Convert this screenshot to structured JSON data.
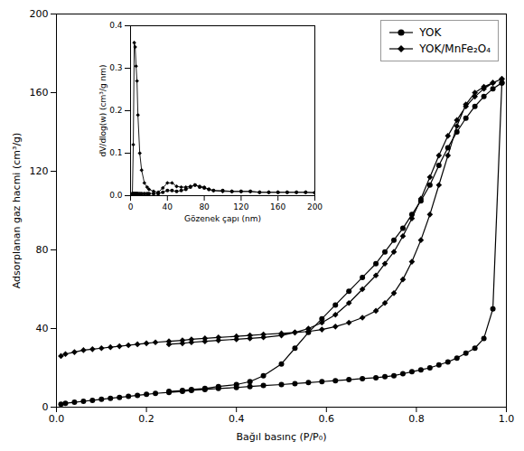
{
  "chart_data": [
    {
      "type": "line",
      "xlabel": "Bağıl basınç (P/P₀)",
      "ylabel": "Adsorplanan gaz hacmi (cm³/g)",
      "x": [
        0.01,
        0.02,
        0.04,
        0.06,
        0.08,
        0.1,
        0.12,
        0.14,
        0.16,
        0.18,
        0.2,
        0.22,
        0.25,
        0.28,
        0.3,
        0.33,
        0.36,
        0.4,
        0.43,
        0.46,
        0.5,
        0.53,
        0.56,
        0.59,
        0.62,
        0.65,
        0.68,
        0.71,
        0.73,
        0.75,
        0.77,
        0.79,
        0.81,
        0.83,
        0.85,
        0.87,
        0.89,
        0.91,
        0.93,
        0.95,
        0.97,
        0.99,
        null,
        0.99,
        0.97,
        0.95,
        0.93,
        0.91,
        0.89,
        0.87,
        0.85,
        0.83,
        0.81,
        0.79,
        0.77,
        0.75,
        0.73,
        0.71,
        0.68,
        0.65,
        0.62,
        0.59,
        0.56,
        0.53,
        0.5,
        0.46,
        0.43,
        0.4,
        0.36,
        0.33,
        0.3,
        0.28,
        0.25
      ],
      "series": [
        {
          "name": "YOK",
          "color": "#000000",
          "marker": "circle",
          "values": [
            1.5,
            2.0,
            2.5,
            3.0,
            3.5,
            4.0,
            4.5,
            5.0,
            5.5,
            6.0,
            6.5,
            7.0,
            7.5,
            8.0,
            8.5,
            9.0,
            9.5,
            10.0,
            10.5,
            11.0,
            11.5,
            12.0,
            12.5,
            13.0,
            13.5,
            14.0,
            14.5,
            15.0,
            15.5,
            16.0,
            17.0,
            18.0,
            19.0,
            20.0,
            21.5,
            23.0,
            25.0,
            27.5,
            30.0,
            35.0,
            50.0,
            165.0,
            null,
            165.0,
            162.0,
            158.0,
            153.0,
            147.0,
            140.0,
            132.0,
            123.0,
            113.0,
            105.0,
            98.0,
            91.0,
            85.0,
            79.0,
            73.0,
            66.0,
            59.0,
            52.0,
            45.0,
            38.0,
            30.0,
            22.0,
            16.0,
            13.0,
            11.5,
            10.5,
            9.5,
            9.0,
            8.5,
            8.0
          ]
        },
        {
          "name": "YOK/MnFe₂O₄",
          "color": "#000000",
          "marker": "diamond",
          "values": [
            26.0,
            27.0,
            28.0,
            29.0,
            29.5,
            30.0,
            30.5,
            31.0,
            31.5,
            32.0,
            32.5,
            33.0,
            33.5,
            34.0,
            34.5,
            35.0,
            35.5,
            36.0,
            36.5,
            37.0,
            37.5,
            38.0,
            38.5,
            39.5,
            41.0,
            43.0,
            45.5,
            49.0,
            53.0,
            58.0,
            65.0,
            74.0,
            85.0,
            98.0,
            113.0,
            128.0,
            143.0,
            154.0,
            160.0,
            163.0,
            165.0,
            167.0,
            null,
            167.0,
            165.0,
            162.0,
            158.0,
            153.0,
            146.0,
            138.0,
            128.0,
            117.0,
            106.0,
            96.0,
            87.0,
            79.0,
            73.0,
            67.0,
            60.0,
            53.0,
            47.0,
            43.0,
            40.0,
            38.0,
            36.5,
            35.5,
            35.0,
            34.5,
            34.0,
            33.5,
            33.0,
            32.5,
            32.0
          ]
        }
      ],
      "xlim": [
        0,
        1.0
      ],
      "ylim": [
        0,
        200
      ],
      "xticks": [
        {
          "value": 0,
          "label": "0.0"
        },
        0.2,
        0.4,
        0.6,
        0.8,
        {
          "value": 1.0,
          "label": "1.0"
        }
      ],
      "yticks": [
        0,
        40,
        80,
        120,
        160,
        200
      ],
      "grid": false,
      "legend": "upper right"
    },
    {
      "type": "line",
      "xlabel": "Gözenek çapı (nm)",
      "ylabel": "dV/dlog(w) (cm³/g nm)",
      "x": [
        2,
        3,
        4,
        5,
        6,
        7,
        8,
        10,
        12,
        15,
        18,
        20,
        25,
        30,
        35,
        40,
        45,
        50,
        55,
        60,
        65,
        70,
        75,
        80,
        85,
        90,
        100,
        110,
        120,
        130,
        140,
        150,
        160,
        170,
        180,
        190,
        200
      ],
      "series": [
        {
          "name": "YOK",
          "color": "#000000",
          "marker": "circle",
          "values": [
            0.005,
            0.005,
            0.005,
            0.005,
            0.005,
            0.005,
            0.005,
            0.005,
            0.005,
            0.005,
            0.005,
            0.005,
            0.005,
            0.005,
            0.008,
            0.012,
            0.012,
            0.01,
            0.012,
            0.015,
            0.02,
            0.025,
            0.02,
            0.018,
            0.015,
            0.012,
            0.012,
            0.01,
            0.01,
            0.01,
            0.008,
            0.008,
            0.008,
            0.008,
            0.008,
            0.008,
            0.007
          ]
        },
        {
          "name": "YOK/MnFe₂O₄",
          "color": "#000000",
          "marker": "diamond",
          "values": [
            0.005,
            0.12,
            0.36,
            0.35,
            0.305,
            0.27,
            0.19,
            0.1,
            0.06,
            0.03,
            0.02,
            0.015,
            0.01,
            0.008,
            0.018,
            0.03,
            0.03,
            0.022,
            0.02,
            0.02,
            0.022,
            0.025,
            0.022,
            0.02,
            0.015,
            0.012,
            0.01,
            0.01,
            0.01,
            0.01,
            0.008,
            0.008,
            0.008,
            0.008,
            0.008,
            0.008,
            0.007
          ]
        }
      ],
      "xlim": [
        0,
        200
      ],
      "ylim": [
        0,
        0.4
      ],
      "xticks": [
        0,
        40,
        80,
        120,
        160,
        200
      ],
      "yticks": [
        {
          "value": 0,
          "label": "0.0"
        },
        0.1,
        0.2,
        0.3,
        0.4
      ],
      "grid": false
    }
  ]
}
